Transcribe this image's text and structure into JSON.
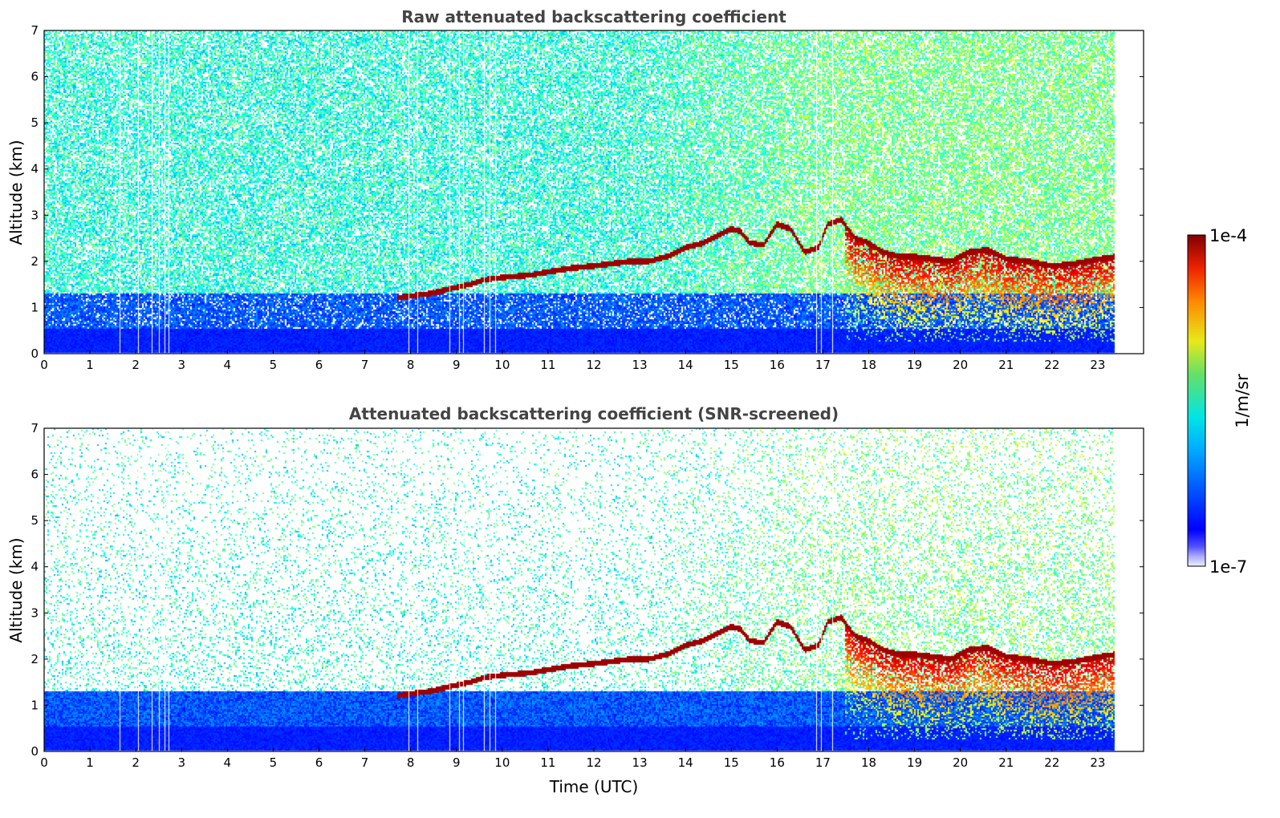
{
  "chart_data": [
    {
      "type": "heatmap",
      "title": "Raw attenuated backscattering coefficient",
      "xlabel": "",
      "ylabel": "Altitude (km)",
      "xlim": [
        0,
        24
      ],
      "ylim": [
        0,
        7
      ],
      "xticks": [
        "0",
        "1",
        "2",
        "3",
        "4",
        "5",
        "6",
        "7",
        "8",
        "9",
        "10",
        "11",
        "12",
        "13",
        "14",
        "15",
        "16",
        "17",
        "18",
        "19",
        "20",
        "21",
        "22",
        "23"
      ],
      "yticks": [
        "0",
        "1",
        "2",
        "3",
        "4",
        "5",
        "6",
        "7"
      ],
      "data_end_time": 23.4,
      "screened": false
    },
    {
      "type": "heatmap",
      "title": "Attenuated backscattering coefficient (SNR-screened)",
      "xlabel": "Time (UTC)",
      "ylabel": "Altitude (km)",
      "xlim": [
        0,
        24
      ],
      "ylim": [
        0,
        7
      ],
      "xticks": [
        "0",
        "1",
        "2",
        "3",
        "4",
        "5",
        "6",
        "7",
        "8",
        "9",
        "10",
        "11",
        "12",
        "13",
        "14",
        "15",
        "16",
        "17",
        "18",
        "19",
        "20",
        "21",
        "22",
        "23"
      ],
      "yticks": [
        "0",
        "1",
        "2",
        "3",
        "4",
        "5",
        "6",
        "7"
      ],
      "data_end_time": 23.4,
      "screened": true
    }
  ],
  "layer_top": {
    "time": [
      7.7,
      8.0,
      8.4,
      9.3,
      9.6,
      10.0,
      10.6,
      11.2,
      11.5,
      12.0,
      12.4,
      12.8,
      13.2,
      13.6,
      14.0,
      14.4,
      14.8,
      15.0,
      15.2,
      15.4,
      15.7,
      16.0,
      16.3,
      16.6,
      16.9,
      17.1,
      17.4,
      17.7,
      18.0,
      18.3,
      18.7,
      19.0,
      19.4,
      19.8,
      20.2,
      20.6,
      21.0,
      21.5,
      22.0,
      22.5,
      23.0,
      23.4
    ],
    "altitude_km": [
      1.2,
      1.25,
      1.3,
      1.5,
      1.6,
      1.65,
      1.7,
      1.8,
      1.85,
      1.9,
      1.95,
      2.0,
      2.0,
      2.1,
      2.3,
      2.4,
      2.6,
      2.7,
      2.65,
      2.4,
      2.35,
      2.8,
      2.7,
      2.2,
      2.3,
      2.8,
      2.9,
      2.5,
      2.4,
      2.2,
      2.1,
      2.1,
      2.05,
      2.0,
      2.2,
      2.25,
      2.05,
      2.0,
      1.9,
      1.95,
      2.05,
      2.1
    ]
  },
  "colorbar": {
    "max_label": "1e-4",
    "min_label": "1e-7",
    "unit": "1/m/sr",
    "colormap": "jet",
    "scale": "log"
  },
  "colors": {
    "title": "#444444",
    "low": "#0010ff",
    "high": "#800000"
  }
}
